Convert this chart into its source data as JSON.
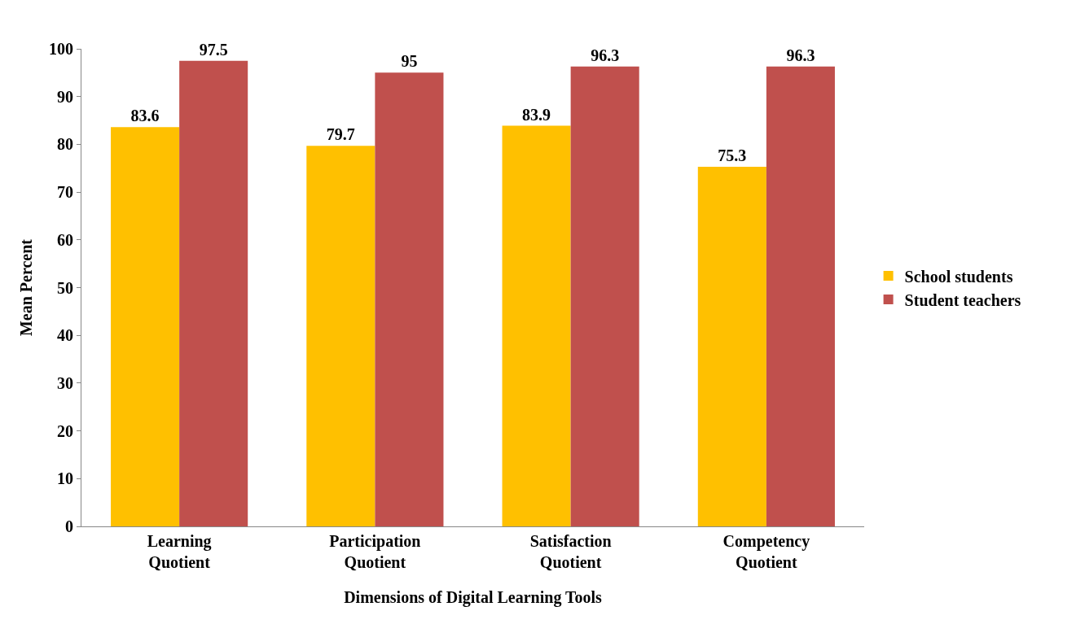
{
  "chart_data": {
    "type": "bar",
    "xlabel": "Dimensions of Digital Learning Tools",
    "ylabel": "Mean Percent",
    "categories": [
      "Learning\nQuotient",
      "Participation\nQuotient",
      "Satisfaction\nQuotient",
      "Competency\nQuotient"
    ],
    "series": [
      {
        "name": "School students",
        "color": "#ffc000",
        "values": [
          83.6,
          79.7,
          83.9,
          75.3
        ]
      },
      {
        "name": "Student teachers",
        "color": "#c0504d",
        "values": [
          97.5,
          95,
          96.3,
          96.3
        ]
      }
    ],
    "ylim": [
      0,
      100
    ],
    "yticks": [
      0,
      10,
      20,
      30,
      40,
      50,
      60,
      70,
      80,
      90,
      100
    ],
    "data_labels": true,
    "legend": "right"
  }
}
